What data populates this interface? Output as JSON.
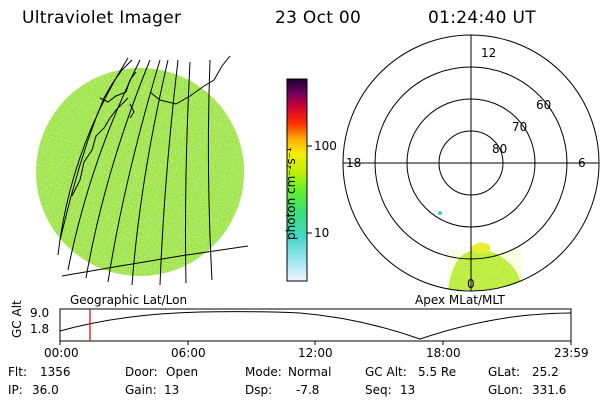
{
  "header": {
    "instrument": "Ultraviolet Imager",
    "date": "23 Oct 00",
    "time": "01:24:40 UT"
  },
  "colorbar": {
    "unit_label": "photon cm⁻²s⁻¹",
    "ticks": [
      "100",
      "10"
    ],
    "colors": [
      "#dff0ff",
      "#9fe6f0",
      "#46d6c8",
      "#39e07a",
      "#66ef2a",
      "#b4f000",
      "#eef000",
      "#ffc400",
      "#ff8c00",
      "#ff2a00",
      "#e00020",
      "#b0003c",
      "#6a0060",
      "#200040"
    ]
  },
  "geo_panel": {
    "label": "Geographic Lat/Lon"
  },
  "polar_panel": {
    "label": "Apex MLat/MLT",
    "mlt_labels": {
      "top": "12",
      "left": "18",
      "right": "6",
      "bottom": "0"
    },
    "lat_labels": [
      "60",
      "70",
      "80"
    ]
  },
  "altitude_plot": {
    "ylabel": "GC Alt",
    "ytick_labels": [
      "9.0",
      "1.8"
    ],
    "x_tick_labels": [
      "00:00",
      "06:00",
      "12:00",
      "18:00",
      "23:59"
    ],
    "current_time_marker": "01:24"
  },
  "info": {
    "flt_label": "Flt:",
    "flt": "1356",
    "ip_label": "IP:",
    "ip": "36.0",
    "door_label": "Door:",
    "door": "Open",
    "gain_label": "Gain:",
    "gain": "13",
    "mode_label": "Mode:",
    "mode": "Normal",
    "dsp_label": "Dsp:",
    "dsp": "-7.8",
    "gcalt_label": "GC Alt:",
    "gcalt": "5.5 Re",
    "seq_label": "Seq:",
    "seq": "13",
    "glat_label": "GLat:",
    "glat": "25.2",
    "glon_label": "GLon:",
    "glon": "331.6"
  }
}
